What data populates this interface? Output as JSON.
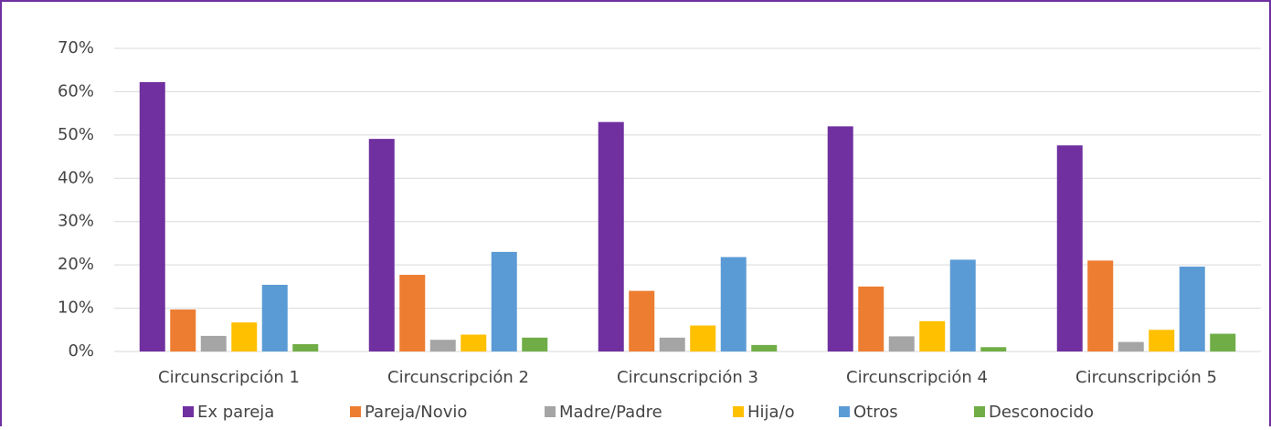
{
  "chart_data": {
    "type": "bar",
    "categories": [
      "Circunscripción 1",
      "Circunscripción 2",
      "Circunscripción 3",
      "Circunscripción 4",
      "Circunscripción 5"
    ],
    "series": [
      {
        "name": "Ex pareja",
        "color": "#7030a0",
        "values": [
          62.2,
          49.1,
          53,
          52,
          47.6
        ]
      },
      {
        "name": "Pareja/Novio",
        "color": "#ed7d31",
        "values": [
          9.7,
          17.7,
          14,
          15,
          21
        ]
      },
      {
        "name": "Madre/Padre",
        "color": "#a5a5a5",
        "values": [
          3.6,
          2.7,
          3.2,
          3.5,
          2.2
        ]
      },
      {
        "name": "Hija/o",
        "color": "#ffc000",
        "values": [
          6.7,
          3.9,
          6,
          7,
          5
        ]
      },
      {
        "name": "Otros",
        "color": "#5b9bd5",
        "values": [
          15.4,
          23,
          21.8,
          21.2,
          19.6
        ]
      },
      {
        "name": "Desconocido",
        "color": "#70ad47",
        "values": [
          1.7,
          3.2,
          1.5,
          1,
          4.1
        ]
      }
    ],
    "ylim": [
      0,
      70
    ],
    "yticks": [
      {
        "value": 0,
        "label": "0%"
      },
      {
        "value": 10,
        "label": "10%"
      },
      {
        "value": 20,
        "label": "20%"
      },
      {
        "value": 30,
        "label": "30%"
      },
      {
        "value": 40,
        "label": "40%"
      },
      {
        "value": 50,
        "label": "50%"
      },
      {
        "value": 60,
        "label": "60%"
      },
      {
        "value": 70,
        "label": "70%"
      }
    ],
    "grid": true,
    "legend": "bottom"
  }
}
